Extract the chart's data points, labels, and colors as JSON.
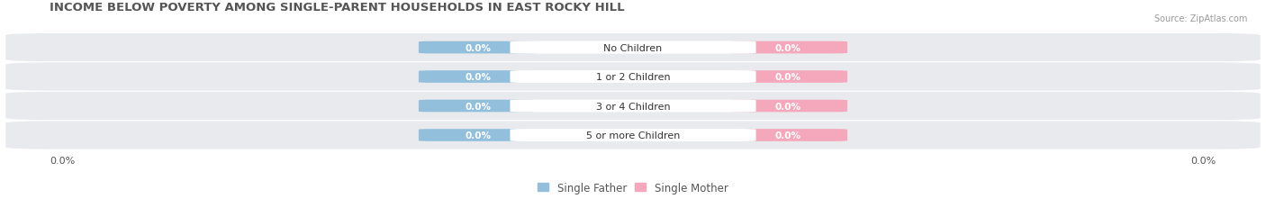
{
  "title": "INCOME BELOW POVERTY AMONG SINGLE-PARENT HOUSEHOLDS IN EAST ROCKY HILL",
  "source": "Source: ZipAtlas.com",
  "categories": [
    "No Children",
    "1 or 2 Children",
    "3 or 4 Children",
    "5 or more Children"
  ],
  "father_values": [
    0.0,
    0.0,
    0.0,
    0.0
  ],
  "mother_values": [
    0.0,
    0.0,
    0.0,
    0.0
  ],
  "father_color": "#92bfdc",
  "mother_color": "#f5a8bc",
  "row_bg_color": "#e8eaed",
  "title_color": "#555555",
  "label_color": "#555555",
  "legend_father": "Single Father",
  "legend_mother": "Single Mother",
  "axis_label": "0.0%",
  "background_color": "#ffffff",
  "title_fontsize": 9.5,
  "label_fontsize": 7.5,
  "category_fontsize": 8,
  "source_fontsize": 7
}
